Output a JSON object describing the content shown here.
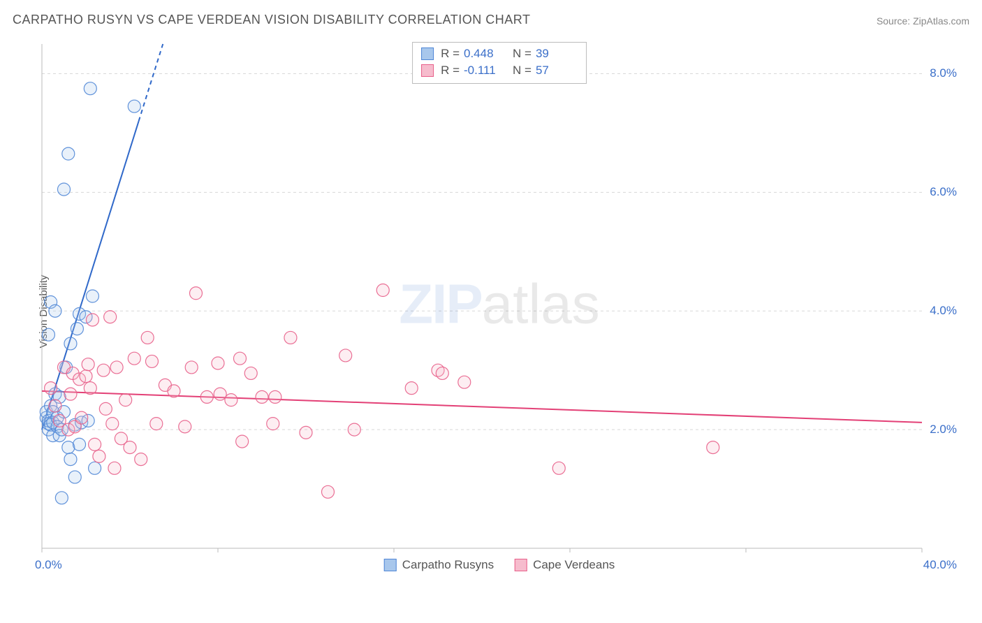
{
  "title": "CARPATHO RUSYN VS CAPE VERDEAN VISION DISABILITY CORRELATION CHART",
  "source_label": "Source: ",
  "source_name": "ZipAtlas.com",
  "y_axis_label": "Vision Disability",
  "watermark_zip": "ZIP",
  "watermark_atlas": "atlas",
  "chart": {
    "type": "scatter",
    "background_color": "#ffffff",
    "grid_color": "#d8d8d8",
    "axis_color": "#bbbbbb",
    "tick_label_color": "#3b6fc9",
    "label_color": "#555555",
    "xlim": [
      0,
      40
    ],
    "ylim": [
      0,
      8.5
    ],
    "x_ticks": [
      0,
      8,
      16,
      24,
      32,
      40
    ],
    "x_tick_labels_shown": {
      "0": "0.0%",
      "40": "40.0%"
    },
    "y_ticks": [
      2,
      4,
      6,
      8
    ],
    "y_tick_labels": [
      "2.0%",
      "4.0%",
      "6.0%",
      "8.0%"
    ],
    "marker_radius": 9,
    "marker_fill_opacity": 0.25,
    "marker_stroke_opacity": 0.9,
    "trend_line_width": 2,
    "series": [
      {
        "name": "Carpatho Rusyns",
        "color_fill": "#a8c7ec",
        "color_stroke": "#4f86d6",
        "trend_color": "#2f68c9",
        "R": "0.448",
        "N": "39",
        "trend": {
          "x1": 0,
          "y1": 2.0,
          "x2": 5.5,
          "y2": 8.5,
          "dashed_after_x": 4.4
        },
        "points": [
          [
            0.2,
            2.2
          ],
          [
            0.2,
            2.3
          ],
          [
            0.3,
            2.0
          ],
          [
            0.3,
            2.1
          ],
          [
            0.3,
            2.15
          ],
          [
            0.4,
            2.08
          ],
          [
            0.4,
            2.4
          ],
          [
            0.5,
            2.3
          ],
          [
            0.5,
            2.12
          ],
          [
            0.5,
            1.9
          ],
          [
            0.6,
            2.6
          ],
          [
            0.7,
            2.2
          ],
          [
            0.7,
            2.05
          ],
          [
            0.8,
            2.55
          ],
          [
            0.8,
            1.9
          ],
          [
            0.9,
            2.0
          ],
          [
            1.0,
            2.3
          ],
          [
            1.1,
            3.05
          ],
          [
            1.2,
            1.7
          ],
          [
            1.3,
            3.45
          ],
          [
            1.3,
            1.5
          ],
          [
            1.5,
            2.08
          ],
          [
            1.5,
            1.2
          ],
          [
            1.6,
            3.7
          ],
          [
            1.7,
            1.75
          ],
          [
            1.7,
            3.95
          ],
          [
            1.8,
            2.12
          ],
          [
            2.0,
            3.9
          ],
          [
            2.1,
            2.15
          ],
          [
            2.3,
            4.25
          ],
          [
            2.4,
            1.35
          ],
          [
            0.3,
            3.6
          ],
          [
            0.4,
            4.15
          ],
          [
            0.6,
            4.0
          ],
          [
            1.0,
            6.05
          ],
          [
            1.2,
            6.65
          ],
          [
            2.2,
            7.75
          ],
          [
            4.2,
            7.45
          ],
          [
            0.9,
            0.85
          ]
        ]
      },
      {
        "name": "Cape Verdeans",
        "color_fill": "#f6bccd",
        "color_stroke": "#e85f8a",
        "trend_color": "#e34076",
        "R": "-0.111",
        "N": "57",
        "trend": {
          "x1": 0,
          "y1": 2.65,
          "x2": 40,
          "y2": 2.12,
          "dashed_after_x": 100
        },
        "points": [
          [
            0.4,
            2.7
          ],
          [
            0.6,
            2.4
          ],
          [
            0.8,
            2.15
          ],
          [
            1.0,
            3.05
          ],
          [
            1.2,
            2.0
          ],
          [
            1.3,
            2.6
          ],
          [
            1.4,
            2.95
          ],
          [
            1.5,
            2.05
          ],
          [
            1.7,
            2.85
          ],
          [
            1.8,
            2.2
          ],
          [
            2.0,
            2.9
          ],
          [
            2.1,
            3.1
          ],
          [
            2.3,
            3.85
          ],
          [
            2.4,
            1.75
          ],
          [
            2.6,
            1.55
          ],
          [
            2.8,
            3.0
          ],
          [
            2.9,
            2.35
          ],
          [
            3.1,
            3.9
          ],
          [
            3.2,
            2.1
          ],
          [
            3.4,
            3.05
          ],
          [
            3.6,
            1.85
          ],
          [
            3.8,
            2.5
          ],
          [
            4.0,
            1.7
          ],
          [
            4.2,
            3.2
          ],
          [
            4.5,
            1.5
          ],
          [
            4.8,
            3.55
          ],
          [
            5.2,
            2.1
          ],
          [
            5.6,
            2.75
          ],
          [
            6.0,
            2.65
          ],
          [
            6.5,
            2.05
          ],
          [
            7.0,
            4.3
          ],
          [
            7.5,
            2.55
          ],
          [
            8.1,
            2.6
          ],
          [
            8.6,
            2.5
          ],
          [
            9.0,
            3.2
          ],
          [
            9.1,
            1.8
          ],
          [
            9.5,
            2.95
          ],
          [
            10.0,
            2.55
          ],
          [
            10.5,
            2.1
          ],
          [
            10.6,
            2.55
          ],
          [
            11.3,
            3.55
          ],
          [
            12.0,
            1.95
          ],
          [
            13.0,
            0.95
          ],
          [
            13.8,
            3.25
          ],
          [
            14.2,
            2.0
          ],
          [
            15.5,
            4.35
          ],
          [
            16.8,
            2.7
          ],
          [
            18.0,
            3.0
          ],
          [
            18.2,
            2.95
          ],
          [
            19.2,
            2.8
          ],
          [
            23.5,
            1.35
          ],
          [
            30.5,
            1.7
          ],
          [
            3.3,
            1.35
          ],
          [
            5.0,
            3.15
          ],
          [
            6.8,
            3.05
          ],
          [
            8.0,
            3.12
          ],
          [
            2.2,
            2.7
          ]
        ]
      }
    ]
  },
  "stats_legend": {
    "r_label": "R =",
    "n_label": "N ="
  }
}
